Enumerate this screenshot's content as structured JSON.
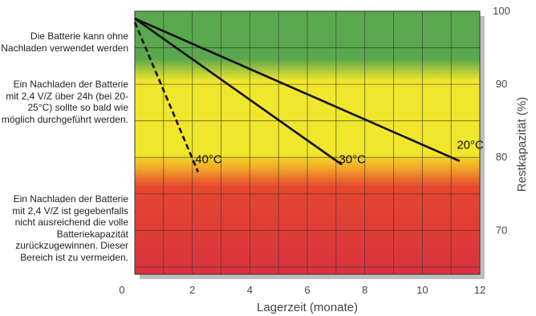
{
  "chart_data": {
    "type": "line",
    "xlabel": "Lagerzeit (monate)",
    "ylabel": "Restkapazität (%)",
    "xlim": [
      0,
      12
    ],
    "ylim": [
      64,
      100
    ],
    "x_ticks": [
      "0",
      "2",
      "4",
      "6",
      "8",
      "10",
      "12"
    ],
    "y_ticks": [
      "70",
      "80",
      "90",
      "100"
    ],
    "grid": true,
    "background_gradient": [
      {
        "y": 100,
        "color": "#5aa84e"
      },
      {
        "y": 93.5,
        "color": "#5aa84e"
      },
      {
        "y": 90.5,
        "color": "#f0e62c"
      },
      {
        "y": 80.5,
        "color": "#f0e62c"
      },
      {
        "y": 78.5,
        "color": "#f3a628"
      },
      {
        "y": 76,
        "color": "#e6482f"
      },
      {
        "y": 64,
        "color": "#d9323f"
      }
    ],
    "series": [
      {
        "name": "20°C",
        "style": "solid",
        "x": [
          0,
          11.3
        ],
        "y": [
          99,
          79.5
        ],
        "label_pos": [
          11.2,
          81.2
        ]
      },
      {
        "name": "30°C",
        "style": "solid",
        "x": [
          0,
          7.2
        ],
        "y": [
          99,
          79
        ],
        "label_pos": [
          7.1,
          79.2
        ]
      },
      {
        "name": "40°C",
        "style": "dashed",
        "x": [
          0,
          2.2
        ],
        "y": [
          98.5,
          78
        ],
        "label_pos": [
          2.1,
          79.2
        ]
      }
    ]
  },
  "zone_notes": [
    "Die Batterie kann ohne Nachladen verwendet werden",
    "Ein Nachladen der Batterie mit 2,4 V/Z über 24h (bei 20-25°C) sollte so bald wie möglich durchgeführt werden.",
    "Ein Nachladen der Batterie mit 2,4 V/Z ist gegebenfalls nicht ausreichend die volle Batteriekapazität zurückzugewinnen. Dieser Bereich ist zu vermeiden."
  ]
}
